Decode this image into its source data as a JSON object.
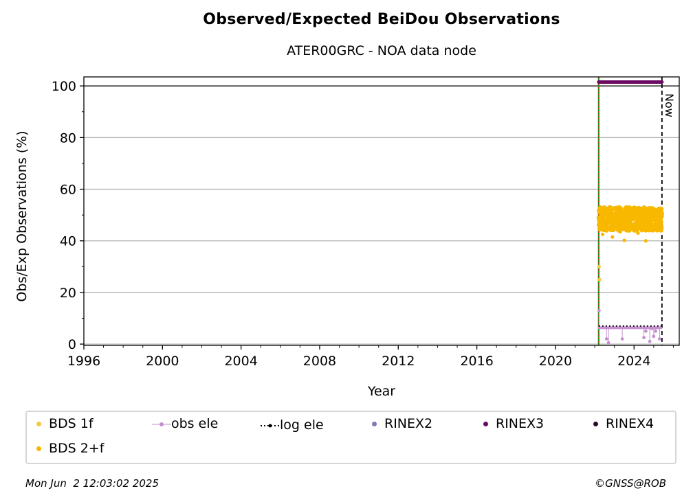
{
  "chart_data": {
    "type": "scatter",
    "title": "Observed/Expected BeiDou Observations",
    "subtitle": "ATER00GRC - NOA data node",
    "xlabel": "Year",
    "ylabel": "Obs/Exp Observations (%)",
    "xlim": [
      1996,
      2026.3
    ],
    "ylim": [
      -0.5,
      103.5
    ],
    "xticks": [
      "1996",
      "2000",
      "2004",
      "2008",
      "2012",
      "2016",
      "2020",
      "2024"
    ],
    "yticks": [
      "0",
      "20",
      "40",
      "60",
      "80",
      "100"
    ],
    "grid": "horizontal",
    "reference_line_y": 100,
    "now_label": "Now",
    "now_x": 2025.42,
    "start_x": 2022.2,
    "series": [
      {
        "name": "BDS 1f",
        "color": "#f7c843",
        "points": [
          [
            2022.22,
            30.0
          ],
          [
            2022.25,
            25.0
          ]
        ]
      },
      {
        "name": "obs ele",
        "color": "#c68fd0",
        "points": [
          [
            2022.22,
            13.0
          ],
          [
            2022.6,
            2.0
          ],
          [
            2022.7,
            0.5
          ],
          [
            2023.4,
            2.0
          ],
          [
            2024.5,
            2.5
          ],
          [
            2024.6,
            5.0
          ],
          [
            2024.8,
            1.0
          ],
          [
            2024.9,
            6.0
          ],
          [
            2025.0,
            3.0
          ],
          [
            2025.1,
            5.0
          ],
          [
            2025.3,
            2.0
          ]
        ]
      },
      {
        "name": "log ele",
        "color": "#000000",
        "y": 7,
        "x_range": [
          2022.2,
          2025.42
        ]
      },
      {
        "name": "RINEX2",
        "color": "#8577b7",
        "points": []
      },
      {
        "name": "RINEX3",
        "color": "#6a0a63",
        "y": 101.5,
        "x_range": [
          2022.2,
          2025.42
        ]
      },
      {
        "name": "RINEX4",
        "color": "#2a0b26",
        "points": []
      },
      {
        "name": "BDS 2+f",
        "color": "#f8b800",
        "band": [
          44,
          53
        ],
        "mean": 48.5,
        "outliers": [
          [
            2022.4,
            42.5
          ],
          [
            2022.9,
            41.5
          ],
          [
            2023.3,
            43.5
          ],
          [
            2023.5,
            40.2
          ],
          [
            2024.2,
            43.0
          ],
          [
            2024.6,
            40.0
          ],
          [
            2025.2,
            44.0
          ]
        ],
        "x_range": [
          2022.2,
          2025.42
        ]
      }
    ]
  },
  "legend": {
    "items": [
      {
        "label": "BDS 1f"
      },
      {
        "label": "obs ele"
      },
      {
        "label": "log ele"
      },
      {
        "label": "RINEX2"
      },
      {
        "label": "RINEX3"
      },
      {
        "label": "RINEX4"
      },
      {
        "label": "BDS 2+f"
      }
    ]
  },
  "footer": {
    "timestamp": "Mon Jun  2 12:03:02 2025",
    "credit": "©GNSS@ROB"
  }
}
